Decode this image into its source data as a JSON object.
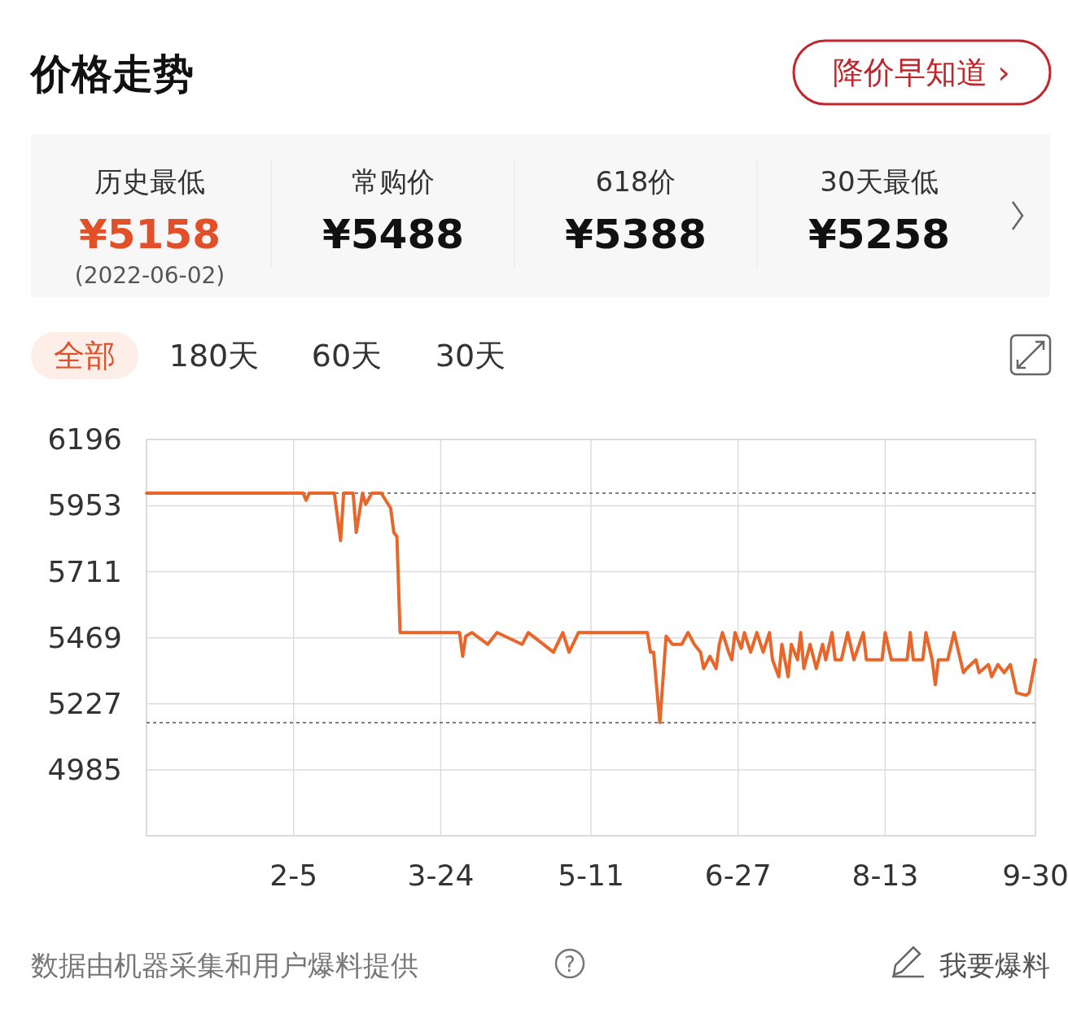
{
  "chart_data": {
    "type": "line",
    "title": "价格走势",
    "annotations": [
      "降价早知道 ›",
      "历史最低",
      "¥5158",
      "(2022-06-02)",
      "常购价",
      "¥5488",
      "618价",
      "¥5388",
      "30天最低",
      "¥5258",
      "全部",
      "180天",
      "60天",
      "30天",
      "数据由机器采集和用户爆料提供",
      "我要爆料",
      "?"
    ],
    "series": [
      {
        "color": "#e8662a",
        "x": [
          "2021-12-20",
          "2022-02-08",
          "2022-02-09",
          "2022-02-10",
          "2022-02-18",
          "2022-02-20",
          "2022-02-21",
          "2022-02-24",
          "2022-02-25",
          "2022-02-27",
          "2022-02-28",
          "2022-03-02",
          "2022-03-05",
          "2022-03-08",
          "2022-03-09",
          "2022-03-10",
          "2022-03-11",
          "2022-03-30",
          "2022-03-31",
          "2022-04-01",
          "2022-04-03",
          "2022-04-08",
          "2022-04-11",
          "2022-04-19",
          "2022-04-21",
          "2022-04-29",
          "2022-05-02",
          "2022-05-04",
          "2022-05-07",
          "2022-05-20",
          "2022-05-29",
          "2022-05-30",
          "2022-05-31",
          "2022-06-02",
          "2022-06-04",
          "2022-06-06",
          "2022-06-09",
          "2022-06-11",
          "2022-06-13",
          "2022-06-15",
          "2022-06-16",
          "2022-06-18",
          "2022-06-20",
          "2022-06-21",
          "2022-06-22",
          "2022-06-24",
          "2022-06-25",
          "2022-06-26",
          "2022-06-28",
          "2022-06-29",
          "2022-07-01",
          "2022-07-03",
          "2022-07-05",
          "2022-07-07",
          "2022-07-08",
          "2022-07-10",
          "2022-07-11",
          "2022-07-13",
          "2022-07-14",
          "2022-07-16",
          "2022-07-17",
          "2022-07-18",
          "2022-07-20",
          "2022-07-22",
          "2022-07-24",
          "2022-07-25",
          "2022-07-27",
          "2022-07-28",
          "2022-07-30",
          "2022-08-01",
          "2022-08-03",
          "2022-08-06",
          "2022-08-07",
          "2022-08-12",
          "2022-08-13",
          "2022-08-15",
          "2022-08-20",
          "2022-08-21",
          "2022-08-22",
          "2022-08-25",
          "2022-08-26",
          "2022-08-28",
          "2022-08-29",
          "2022-08-30",
          "2022-09-02",
          "2022-09-04",
          "2022-09-07",
          "2022-09-08",
          "2022-09-11",
          "2022-09-12",
          "2022-09-15",
          "2022-09-16",
          "2022-09-18",
          "2022-09-20",
          "2022-09-22",
          "2022-09-24",
          "2022-09-27",
          "2022-09-28",
          "2022-09-30"
        ],
        "values": [
          5999,
          5999,
          5973,
          5999,
          5999,
          5825,
          5999,
          5999,
          5855,
          5999,
          5958,
          5999,
          5999,
          5944,
          5855,
          5840,
          5488,
          5488,
          5401,
          5475,
          5488,
          5445,
          5488,
          5445,
          5488,
          5416,
          5488,
          5416,
          5488,
          5488,
          5488,
          5416,
          5416,
          5158,
          5475,
          5445,
          5445,
          5488,
          5445,
          5416,
          5356,
          5401,
          5356,
          5445,
          5488,
          5416,
          5388,
          5488,
          5430,
          5488,
          5416,
          5488,
          5416,
          5488,
          5388,
          5326,
          5445,
          5326,
          5445,
          5388,
          5488,
          5356,
          5445,
          5356,
          5445,
          5388,
          5488,
          5388,
          5388,
          5488,
          5388,
          5488,
          5388,
          5388,
          5488,
          5388,
          5388,
          5488,
          5388,
          5388,
          5488,
          5388,
          5297,
          5388,
          5388,
          5488,
          5341,
          5356,
          5388,
          5341,
          5371,
          5326,
          5371,
          5341,
          5371,
          5267,
          5258,
          5267,
          5388
        ]
      }
    ],
    "xlim": [
      "2021-12-20",
      "2022-09-30"
    ],
    "xticks": [
      {
        "value": "2022-02-05",
        "label": "2-5"
      },
      {
        "value": "2022-03-24",
        "label": "3-24"
      },
      {
        "value": "2022-05-11",
        "label": "5-11"
      },
      {
        "value": "2022-06-27",
        "label": "6-27"
      },
      {
        "value": "2022-08-13",
        "label": "8-13"
      },
      {
        "value": "2022-09-30",
        "label": "9-30"
      }
    ],
    "ylim": [
      4743,
      6196
    ],
    "yticks": [
      4985,
      5227,
      5469,
      5711,
      5953,
      6196
    ],
    "grid": true,
    "line_style": "solid",
    "ref_lines": [
      {
        "axis": "y",
        "value": 5999,
        "color": "#555555",
        "line_style": "dashed"
      },
      {
        "axis": "y",
        "value": 5158,
        "color": "#555555",
        "line_style": "dashed"
      }
    ]
  }
}
